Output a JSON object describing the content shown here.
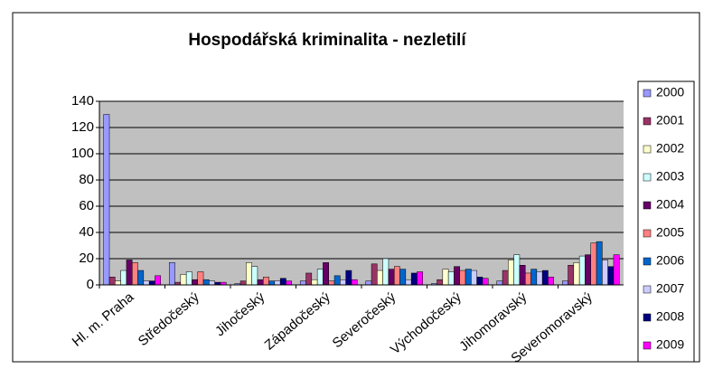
{
  "chart_data": {
    "type": "bar",
    "title": "Hospodářská kriminalita - nezletilí",
    "categories": [
      "Hl. m. Praha",
      "Středočeský",
      "Jihočeský",
      "Západočeský",
      "Severočeský",
      "Východočeský",
      "Jihomoravský",
      "Severomoravský"
    ],
    "series": [
      {
        "name": "2000",
        "color": "#9999ff",
        "values": [
          130,
          17,
          1,
          3,
          3,
          1,
          3,
          3
        ]
      },
      {
        "name": "2001",
        "color": "#993366",
        "values": [
          6,
          2,
          3,
          9,
          16,
          4,
          11,
          15
        ]
      },
      {
        "name": "2002",
        "color": "#ffffcc",
        "values": [
          3,
          8,
          17,
          4,
          11,
          12,
          19,
          17
        ]
      },
      {
        "name": "2003",
        "color": "#ccffff",
        "values": [
          11,
          10,
          14,
          12,
          20,
          10,
          23,
          22
        ]
      },
      {
        "name": "2004",
        "color": "#660066",
        "values": [
          19,
          4,
          4,
          17,
          12,
          14,
          15,
          23
        ]
      },
      {
        "name": "2005",
        "color": "#ff8080",
        "values": [
          17,
          10,
          6,
          3,
          14,
          11,
          9,
          32
        ]
      },
      {
        "name": "2006",
        "color": "#0066cc",
        "values": [
          11,
          4,
          3,
          7,
          12,
          12,
          12,
          33
        ]
      },
      {
        "name": "2007",
        "color": "#ccccff",
        "values": [
          3,
          3,
          3,
          4,
          4,
          11,
          10,
          19
        ]
      },
      {
        "name": "2008",
        "color": "#000080",
        "values": [
          3,
          2,
          5,
          11,
          9,
          6,
          11,
          14
        ]
      },
      {
        "name": "2009",
        "color": "#ff00ff",
        "values": [
          7,
          2,
          3,
          4,
          10,
          5,
          6,
          23
        ]
      }
    ],
    "ylim": [
      0,
      140
    ],
    "yticks": [
      0,
      20,
      40,
      60,
      80,
      100,
      120,
      140
    ],
    "grid": true,
    "legend": "right"
  }
}
